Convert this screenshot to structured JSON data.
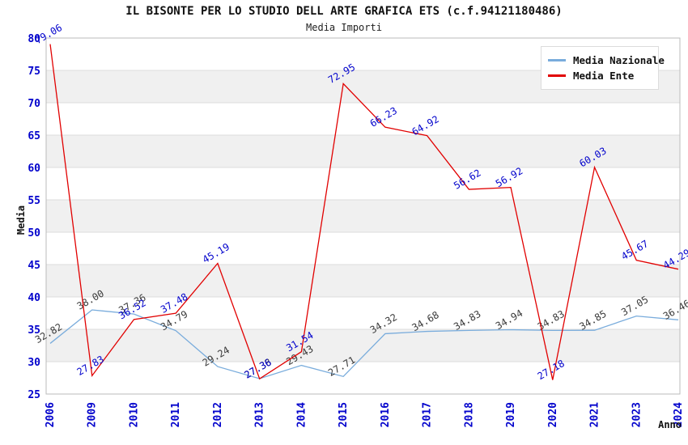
{
  "title": "IL BISONTE PER LO STUDIO DELL ARTE GRAFICA ETS (c.f.94121180486)",
  "subtitle": "Media Importi",
  "chart_data": {
    "type": "line",
    "title": "IL BISONTE PER LO STUDIO DELL ARTE GRAFICA ETS (c.f.94121180486)",
    "subtitle": "Media Importi",
    "xlabel": "Anno",
    "ylabel": "Media",
    "categories": [
      "2006",
      "2009",
      "2010",
      "2011",
      "2012",
      "2013",
      "2014",
      "2015",
      "2016",
      "2017",
      "2018",
      "2019",
      "2020",
      "2021",
      "2023",
      "2024"
    ],
    "series": [
      {
        "name": "Media Nazionale",
        "color": "#79ACDC",
        "label_color": "#3a3a3a",
        "values": [
          32.82,
          38.0,
          37.36,
          34.79,
          29.24,
          27.38,
          29.43,
          27.71,
          34.32,
          34.68,
          34.83,
          34.94,
          34.83,
          34.85,
          37.05,
          36.46
        ]
      },
      {
        "name": "Media Ente",
        "color": "#E10000",
        "label_color": "#0202CC",
        "values": [
          79.06,
          27.83,
          36.52,
          37.48,
          45.19,
          27.36,
          31.54,
          72.95,
          66.23,
          64.92,
          56.62,
          56.92,
          27.18,
          60.03,
          45.67,
          44.29
        ]
      }
    ],
    "ylim": [
      25,
      80
    ],
    "y_ticks": [
      25,
      30,
      35,
      40,
      45,
      50,
      55,
      60,
      65,
      70,
      75,
      80
    ],
    "grid": true,
    "band_fill": "#F0F0F0",
    "legend_position": "top-right"
  },
  "axis": {
    "tick_color": "#0202CC",
    "grid_color": "#DDDDDD",
    "border_color": "#BBBBBB"
  }
}
